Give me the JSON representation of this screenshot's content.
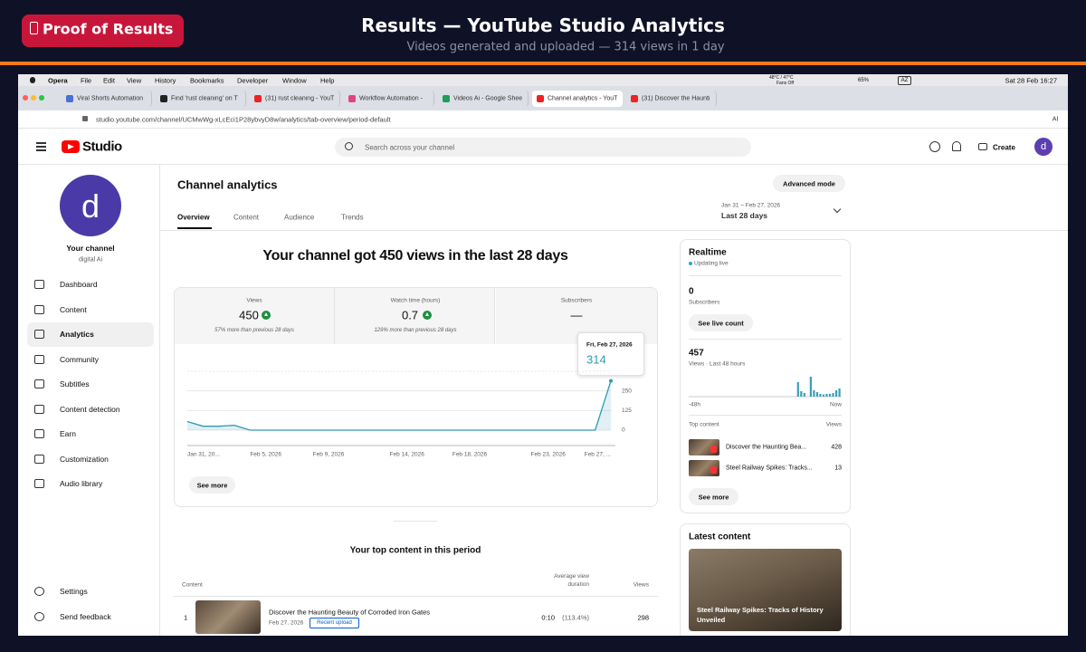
{
  "banner": {
    "badge": "Proof of Results",
    "title": "Results — YouTube Studio Analytics",
    "subtitle": "Videos generated and uploaded — 314 views in 1 day"
  },
  "menubar": {
    "app": "Opera",
    "items": [
      "File",
      "Edit",
      "View",
      "History",
      "Bookmarks",
      "Developer",
      "Window",
      "Help"
    ],
    "temp": "48°C / 47°C",
    "fans": "Fans Off",
    "battery": "65%",
    "input": "AZ",
    "clock": "Sat 28 Feb 16:27"
  },
  "browser": {
    "tabs": [
      "Viral Shorts Automation",
      "Find 'rust cleaning' on T",
      "(31) rust cleaning - YouT",
      "Workflow Automation -",
      "Videos Ai - Google Shee",
      "Channel analytics - YouT",
      "(31) Discover the Haunti"
    ],
    "url": "studio.youtube.com/channel/UCMwWg-xLcEci1P28ybvyD8w/analytics/tab-overview/period-default",
    "ai": "AI"
  },
  "header": {
    "logo": "Studio",
    "search": "Search across your channel",
    "create": "Create",
    "avatar": "d"
  },
  "sidebar": {
    "avatar": "d",
    "channel": "Your channel",
    "handle": "digital Ai",
    "nav": [
      "Dashboard",
      "Content",
      "Analytics",
      "Community",
      "Subtitles",
      "Content detection",
      "Earn",
      "Customization",
      "Audio library"
    ],
    "footer": [
      "Settings",
      "Send feedback"
    ]
  },
  "page": {
    "title": "Channel analytics",
    "tabs": [
      "Overview",
      "Content",
      "Audience",
      "Trends"
    ],
    "advanced": "Advanced mode",
    "range": "Jan 31 – Feb 27, 2026",
    "period": "Last 28 days",
    "headline": "Your channel got 450 views in the last 28 days",
    "metrics": [
      {
        "label": "Views",
        "value": "450",
        "note": "57% more than previous 28 days"
      },
      {
        "label": "Watch time (hours)",
        "value": "0.7",
        "note": "129% more than previous 28 days"
      },
      {
        "label": "Subscribers",
        "value": "—"
      }
    ],
    "tooltip": {
      "date": "Fri, Feb 27, 2026",
      "value": "314"
    },
    "see_more": "See more"
  },
  "chart_data": {
    "type": "line",
    "color": "#2f9bb3",
    "categories": [
      "Jan 31, 20...",
      null,
      null,
      null,
      null,
      "Feb 5, 2026",
      null,
      null,
      null,
      "Feb 9, 2026",
      null,
      null,
      null,
      null,
      "Feb 14, 2026",
      null,
      null,
      null,
      "Feb 18, 2026",
      null,
      null,
      null,
      null,
      "Feb 23, 2026",
      null,
      null,
      null,
      "Feb 27, ..."
    ],
    "values": [
      55,
      25,
      25,
      31,
      0,
      0,
      0,
      0,
      0,
      0,
      0,
      0,
      0,
      0,
      0,
      0,
      0,
      0,
      0,
      0,
      0,
      0,
      0,
      0,
      0,
      0,
      0,
      314
    ],
    "ylim": [
      0,
      375
    ],
    "yticks": [
      0,
      125,
      250
    ],
    "grid": true
  },
  "top_content": {
    "title": "Your top content in this period",
    "headers": [
      "Content",
      "Average view duration",
      "Views"
    ],
    "rows": [
      {
        "rank": "1",
        "title": "Discover the Haunting Beauty of Corroded Iron Gates",
        "date": "Feb 27, 2026",
        "badge": "Recent upload",
        "duration": "0:10",
        "percent": "(113.4%)",
        "views": "298"
      }
    ]
  },
  "realtime": {
    "title": "Realtime",
    "status": "Updating live",
    "subscribers": "0",
    "subscribers_label": "Subscribers",
    "live_count": "See live count",
    "views": "457",
    "views_label": "Views · Last 48 hours",
    "hourly": [
      0,
      0,
      0,
      0,
      0,
      0,
      0,
      0,
      0,
      0,
      0,
      0,
      0,
      0,
      0,
      0,
      0,
      0,
      0,
      0,
      0,
      0,
      0,
      0,
      0,
      0,
      0,
      0,
      0,
      0,
      0,
      0,
      0,
      0,
      80,
      30,
      20,
      0,
      110,
      35,
      25,
      15,
      12,
      15,
      15,
      20,
      35,
      45
    ],
    "start": "-48h",
    "end": "Now",
    "top_label": "Top content",
    "views_header": "Views",
    "items": [
      {
        "title": "Discover the Haunting Bea...",
        "views": "428"
      },
      {
        "title": "Steel Railway Spikes: Tracks...",
        "views": "13"
      }
    ],
    "see_more": "See more"
  },
  "latest": {
    "title": "Latest content",
    "video": "Steel Railway Spikes: Tracks of History Unveiled"
  }
}
